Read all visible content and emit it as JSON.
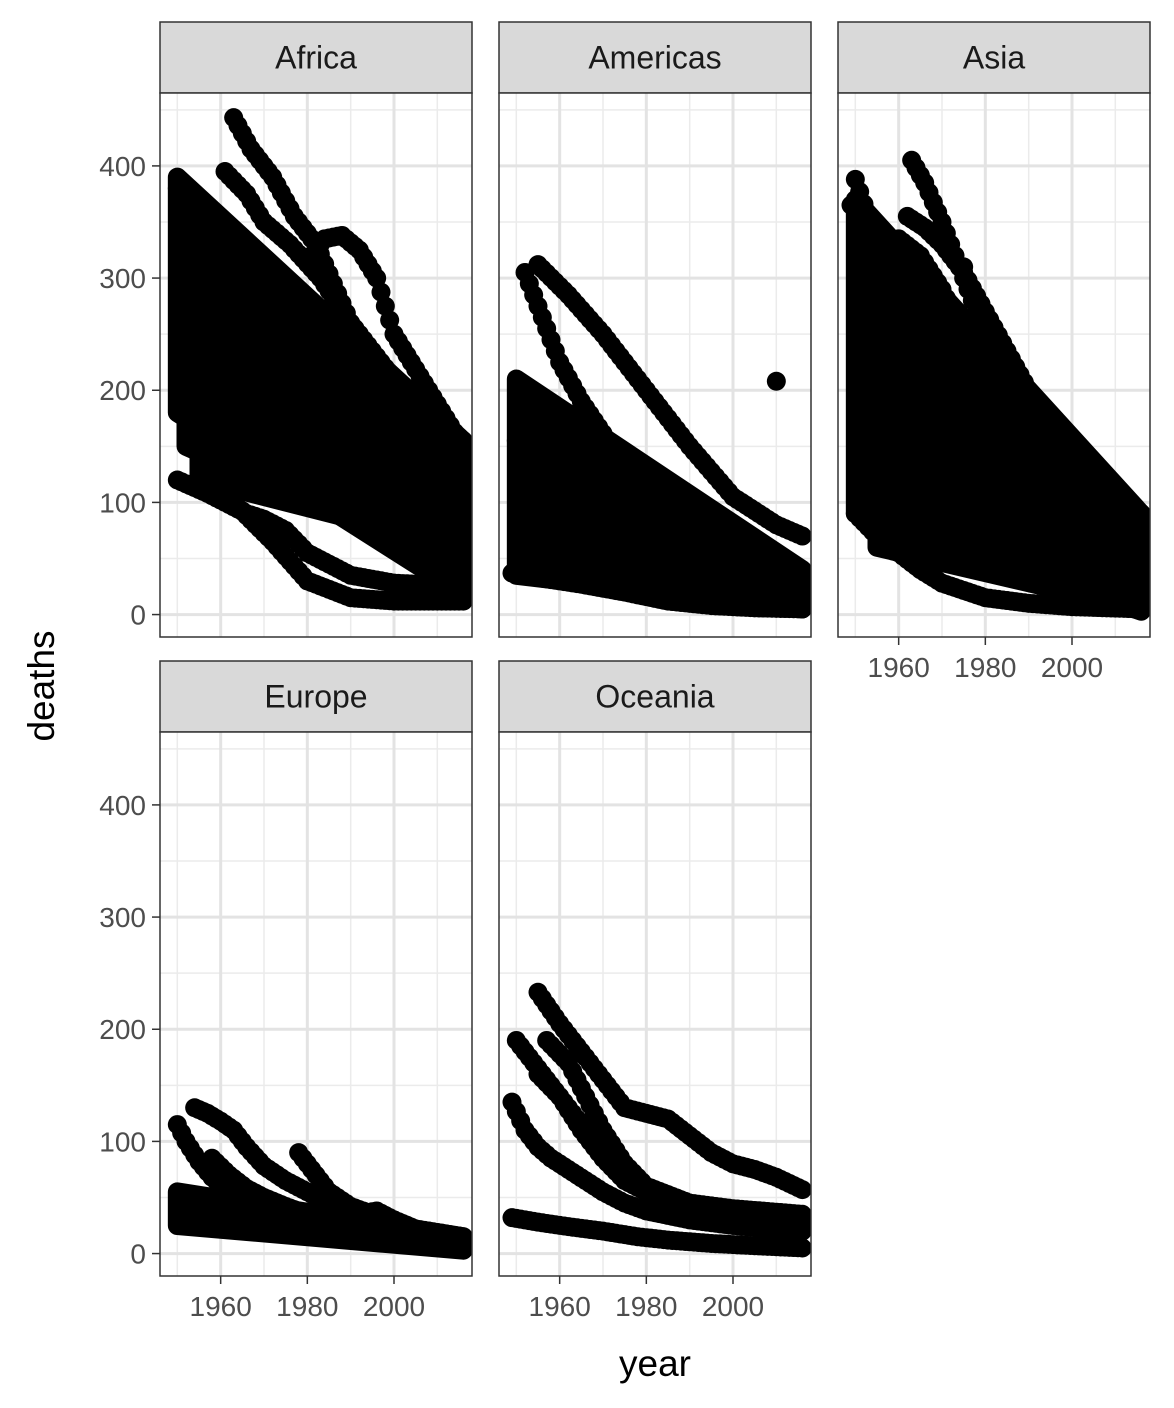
{
  "chart_data": {
    "type": "scatter",
    "faceted": true,
    "facet_layout": {
      "ncol": 3,
      "nrow": 2
    },
    "xlabel": "year",
    "ylabel": "deaths",
    "xlim": [
      1946,
      2018
    ],
    "ylim": [
      -20,
      465
    ],
    "x_ticks": [
      1960,
      1980,
      2000
    ],
    "x_tick_labels": [
      "1960",
      "1980",
      "2000"
    ],
    "y_ticks": [
      0,
      100,
      200,
      300,
      400
    ],
    "y_tick_labels": [
      "0",
      "100",
      "200",
      "300",
      "400"
    ],
    "theme": "bw",
    "grid": true,
    "legend": "none",
    "point_color": "#000000",
    "strip_fill": "#d9d9d9",
    "facets": [
      {
        "name": "Africa",
        "bands": [
          {
            "x0": 1950,
            "x1": 2016,
            "lo0": 180,
            "hi0": 390,
            "lo1": 18,
            "hi1": 155
          },
          {
            "x0": 1952,
            "x1": 2016,
            "lo0": 150,
            "hi0": 320,
            "lo1": 40,
            "hi1": 140
          },
          {
            "x0": 1955,
            "x1": 2016,
            "lo0": 120,
            "hi0": 340,
            "lo1": 60,
            "hi1": 150
          }
        ],
        "curves": [
          {
            "name": "",
            "x": [
              1963,
              1967,
              1972,
              1977,
              1982,
              1990,
              2000,
              2016
            ],
            "y": [
              443,
              415,
              390,
              355,
              330,
              260,
              210,
              155
            ]
          },
          {
            "name": "",
            "x": [
              1950,
              1957,
              1965,
              1972,
              1980,
              1990,
              2000,
              2016
            ],
            "y": [
              120,
              108,
              92,
              65,
              30,
              15,
              12,
              12
            ]
          },
          {
            "name": "",
            "x": [
              1980,
              1984,
              1988,
              1992,
              1996,
              2000,
              2008,
              2016
            ],
            "y": [
              315,
              335,
              338,
              325,
              300,
              250,
              200,
              150
            ]
          },
          {
            "name": "",
            "x": [
              1961,
              1966,
              1970,
              1976,
              1983,
              1990,
              2000,
              2016
            ],
            "y": [
              395,
              375,
              350,
              330,
              300,
              260,
              200,
              150
            ]
          },
          {
            "name": "",
            "x": [
              1955,
              1958,
              1962,
              1966,
              1970,
              1975,
              1980,
              1990,
              2000,
              2016
            ],
            "y": [
              135,
              115,
              100,
              90,
              85,
              75,
              55,
              35,
              28,
              25
            ]
          },
          {
            "name": "",
            "x": [
              1950,
              1960,
              1970,
              1980,
              1990,
              2000,
              2016
            ],
            "y": [
              380,
              330,
              280,
              230,
              185,
              140,
              95
            ]
          },
          {
            "name": "",
            "x": [
              1955,
              1965,
              1975,
              1985,
              1995,
              2005,
              2016
            ],
            "y": [
              360,
              310,
              260,
              210,
              165,
              120,
              80
            ]
          }
        ],
        "scatter": []
      },
      {
        "name": "Americas",
        "bands": [
          {
            "x0": 1950,
            "x1": 2016,
            "lo0": 35,
            "hi0": 210,
            "lo1": 5,
            "hi1": 40
          },
          {
            "x0": 1955,
            "x1": 2016,
            "lo0": 40,
            "hi0": 170,
            "lo1": 5,
            "hi1": 25
          }
        ],
        "curves": [
          {
            "name": "",
            "x": [
              1955,
              1962,
              1970,
              1980,
              1990,
              2000,
              2010,
              2016
            ],
            "y": [
              312,
              285,
              250,
              200,
              150,
              105,
              80,
              70
            ]
          },
          {
            "name": "",
            "x": [
              1952,
              1956,
              1960,
              1965,
              1972,
              1980,
              1990,
              2000,
              2016
            ],
            "y": [
              305,
              265,
              225,
              190,
              150,
              105,
              65,
              35,
              25
            ]
          },
          {
            "name": "",
            "x": [
              1949,
              1955,
              1965,
              1975,
              1985,
              1995,
              2005,
              2016
            ],
            "y": [
              37,
              33,
              27,
              20,
              12,
              8,
              6,
              5
            ]
          },
          {
            "name": "",
            "x": [
              1950,
              1955,
              1960,
              1970,
              1980,
              1990,
              2000,
              2016
            ],
            "y": [
              155,
              120,
              90,
              60,
              40,
              25,
              15,
              10
            ]
          },
          {
            "name": "",
            "x": [
              1952,
              1957,
              1962,
              1970,
              1980,
              1990,
              2000,
              2016
            ],
            "y": [
              160,
              150,
              130,
              100,
              70,
              45,
              25,
              15
            ]
          }
        ],
        "scatter": [
          {
            "x": 2010,
            "y": 208
          }
        ]
      },
      {
        "name": "Asia",
        "bands": [
          {
            "x0": 1950,
            "x1": 2016,
            "lo0": 90,
            "hi0": 370,
            "lo1": 3,
            "hi1": 90
          },
          {
            "x0": 1955,
            "x1": 2016,
            "lo0": 60,
            "hi0": 280,
            "lo1": 5,
            "hi1": 60
          }
        ],
        "curves": [
          {
            "name": "",
            "x": [
              1963,
              1966,
              1970,
              1975,
              1980,
              1986,
              1992,
              2000,
              2016
            ],
            "y": [
              405,
              385,
              350,
              300,
              250,
              205,
              165,
              135,
              90
            ]
          },
          {
            "name": "",
            "x": [
              1950,
              1955,
              1960,
              1965,
              1970,
              1980,
              1990,
              2000,
              2016
            ],
            "y": [
              90,
              70,
              55,
              40,
              28,
              15,
              10,
              7,
              5
            ]
          },
          {
            "name": "",
            "x": [
              1950,
              1953,
              1957,
              1962,
              1967,
              1972,
              1980,
              1990,
              2000,
              2016
            ],
            "y": [
              388,
              355,
              320,
              290,
              255,
              220,
              160,
              110,
              75,
              50
            ]
          },
          {
            "name": "",
            "x": [
              1962,
              1966,
              1970,
              1975,
              1980,
              1990,
              2000,
              2016
            ],
            "y": [
              355,
              345,
              330,
              305,
              270,
              200,
              140,
              90
            ]
          },
          {
            "name": "",
            "x": [
              1955,
              1960,
              1965,
              1970,
              1975,
              1985,
              1995,
              2005,
              2016
            ],
            "y": [
              330,
              335,
              320,
              290,
              250,
              180,
              120,
              80,
              55
            ]
          }
        ],
        "scatter": [
          {
            "x": 1975,
            "y": 310
          },
          {
            "x": 1949,
            "y": 365
          }
        ]
      },
      {
        "name": "Europe",
        "bands": [
          {
            "x0": 1950,
            "x1": 2016,
            "lo0": 25,
            "hi0": 55,
            "lo1": 3,
            "hi1": 15
          }
        ],
        "curves": [
          {
            "name": "",
            "x": [
              1954,
              1957,
              1960,
              1963,
              1966,
              1970,
              1975,
              1980,
              1985,
              1990,
              2000,
              2016
            ],
            "y": [
              130,
              125,
              118,
              110,
              95,
              78,
              65,
              55,
              45,
              35,
              22,
              12
            ]
          },
          {
            "name": "",
            "x": [
              1950,
              1952,
              1955,
              1958,
              1962,
              1966,
              1970,
              1975,
              1980,
              1990,
              2000,
              2016
            ],
            "y": [
              115,
              100,
              82,
              68,
              55,
              45,
              38,
              30,
              22,
              15,
              10,
              6
            ]
          },
          {
            "name": "",
            "x": [
              1978,
              1981,
              1985,
              1990,
              1995,
              2000,
              2005,
              2016
            ],
            "y": [
              90,
              75,
              55,
              42,
              35,
              30,
              22,
              15
            ]
          },
          {
            "name": "",
            "x": [
              1958,
              1962,
              1966,
              1970,
              1975,
              1980,
              1990,
              2000,
              2016
            ],
            "y": [
              85,
              70,
              58,
              50,
              42,
              35,
              28,
              20,
              12
            ]
          },
          {
            "name": "",
            "x": [
              1990,
              1993,
              1996,
              2000,
              2005,
              2016
            ],
            "y": [
              30,
              36,
              38,
              30,
              18,
              10
            ]
          }
        ],
        "scatter": []
      },
      {
        "name": "Oceania",
        "bands": [],
        "curves": [
          {
            "name": "",
            "x": [
              1955,
              1960,
              1965,
              1970,
              1975,
              1980,
              1985,
              1990,
              1995,
              2000,
              2005,
              2010,
              2016
            ],
            "y": [
              233,
              205,
              180,
              155,
              130,
              125,
              120,
              105,
              90,
              80,
              75,
              68,
              57
            ]
          },
          {
            "name": "",
            "x": [
              1950,
              1953,
              1956,
              1960,
              1965,
              1970,
              1975,
              1980,
              1990,
              2000,
              2016
            ],
            "y": [
              190,
              175,
              160,
              140,
              115,
              90,
              70,
              55,
              40,
              32,
              25
            ]
          },
          {
            "name": "",
            "x": [
              1949,
              1952,
              1955,
              1958,
              1962,
              1966,
              1970,
              1975,
              1980,
              1990,
              2000,
              2016
            ],
            "y": [
              135,
              110,
              95,
              85,
              75,
              65,
              55,
              45,
              38,
              30,
              25,
              20
            ]
          },
          {
            "name": "",
            "x": [
              1955,
              1960,
              1965,
              1970,
              1975,
              1980,
              1985,
              1990,
              2000,
              2016
            ],
            "y": [
              160,
              140,
              110,
              85,
              65,
              55,
              50,
              45,
              35,
              30
            ]
          },
          {
            "name": "",
            "x": [
              1949,
              1955,
              1962,
              1970,
              1978,
              1985,
              1995,
              2005,
              2016
            ],
            "y": [
              32,
              28,
              24,
              20,
              15,
              12,
              9,
              7,
              5
            ]
          },
          {
            "name": "",
            "x": [
              1957,
              1962,
              1966,
              1970,
              1975,
              1980,
              1990,
              2000,
              2016
            ],
            "y": [
              190,
              170,
              140,
              110,
              80,
              60,
              45,
              40,
              35
            ]
          }
        ],
        "scatter": []
      }
    ]
  }
}
